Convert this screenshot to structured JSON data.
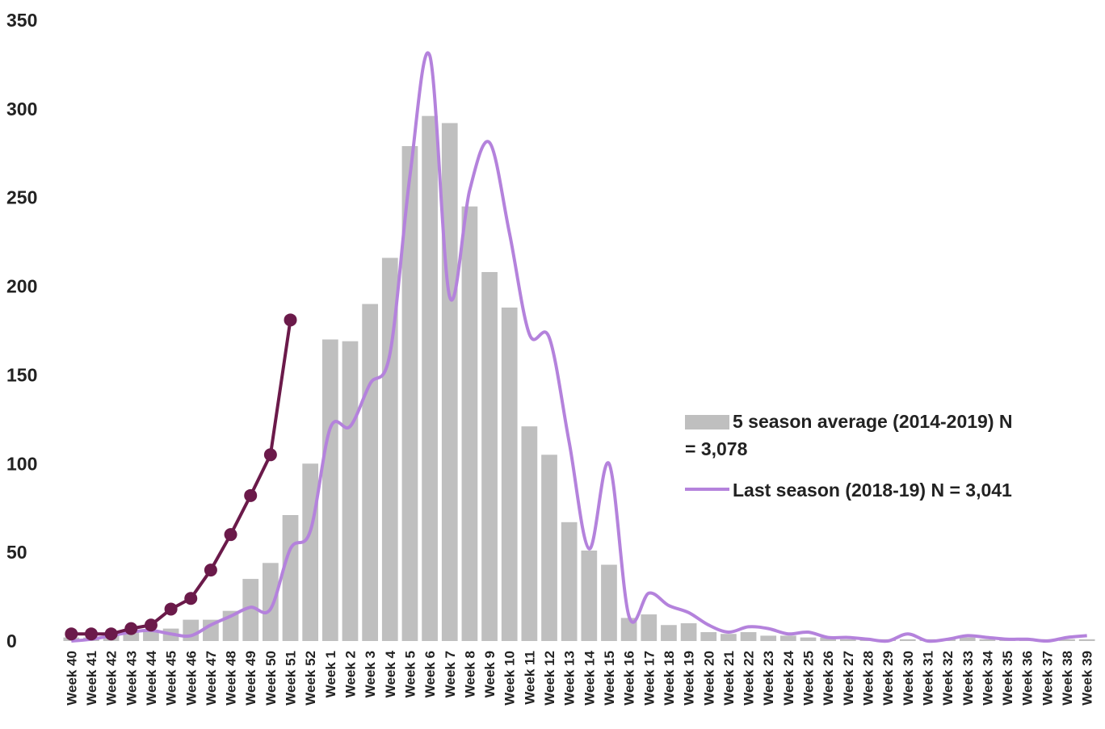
{
  "chart_data": {
    "type": "bar",
    "categories": [
      "Week 40",
      "Week 41",
      "Week 42",
      "Week 43",
      "Week 44",
      "Week 45",
      "Week 46",
      "Week 47",
      "Week 48",
      "Week 49",
      "Week 50",
      "Week 51",
      "Week 52",
      "Week 1",
      "Week 2",
      "Week 3",
      "Week 4",
      "Week 5",
      "Week 6",
      "Week 7",
      "Week 8",
      "Week 9",
      "Week 10",
      "Week 11",
      "Week 12",
      "Week 13",
      "Week 14",
      "Week 15",
      "Week 16",
      "Week 17",
      "Week 18",
      "Week 19",
      "Week 20",
      "Week 21",
      "Week 22",
      "Week 23",
      "Week 24",
      "Week 25",
      "Week 26",
      "Week 27",
      "Week 28",
      "Week 29",
      "Week 30",
      "Week 31",
      "Week 32",
      "Week 33",
      "Week 34",
      "Week 35",
      "Week 36",
      "Week 37",
      "Week 38",
      "Week 39"
    ],
    "series": [
      {
        "name": "5 season average (2014-2019) N = 3,078",
        "type": "bar",
        "color": "#bfbfbf",
        "values": [
          2,
          2,
          4,
          5,
          6,
          7,
          12,
          12,
          17,
          35,
          44,
          71,
          100,
          170,
          169,
          190,
          216,
          279,
          296,
          292,
          245,
          208,
          188,
          121,
          105,
          67,
          51,
          43,
          13,
          15,
          9,
          10,
          5,
          4,
          5,
          3,
          3,
          2,
          2,
          1,
          1,
          1,
          1,
          1,
          1,
          2,
          1,
          1,
          1,
          1,
          1,
          1
        ]
      },
      {
        "name": "Last season (2018-19) N = 3,041",
        "type": "line",
        "color": "#b482dc",
        "values": [
          0,
          1,
          3,
          5,
          6,
          4,
          3,
          9,
          14,
          19,
          18,
          52,
          62,
          120,
          121,
          145,
          162,
          262,
          330,
          194,
          254,
          281,
          230,
          173,
          171,
          112,
          52,
          100,
          14,
          27,
          20,
          16,
          9,
          5,
          8,
          7,
          4,
          5,
          2,
          2,
          1,
          0,
          4,
          0,
          1,
          3,
          2,
          1,
          1,
          0,
          2,
          3
        ]
      },
      {
        "type": "line",
        "color": "#6b1a4a",
        "markers": true,
        "values": [
          4,
          4,
          4,
          7,
          9,
          18,
          24,
          40,
          60,
          82,
          105,
          181,
          null,
          null,
          null,
          null,
          null,
          null,
          null,
          null,
          null,
          null,
          null,
          null,
          null,
          null,
          null,
          null,
          null,
          null,
          null,
          null,
          null,
          null,
          null,
          null,
          null,
          null,
          null,
          null,
          null,
          null,
          null,
          null,
          null,
          null,
          null,
          null,
          null,
          null,
          null,
          null
        ]
      }
    ],
    "ylim": [
      0,
      350
    ],
    "yticks": [
      0,
      50,
      100,
      150,
      200,
      250,
      300,
      350
    ],
    "grid": false
  }
}
